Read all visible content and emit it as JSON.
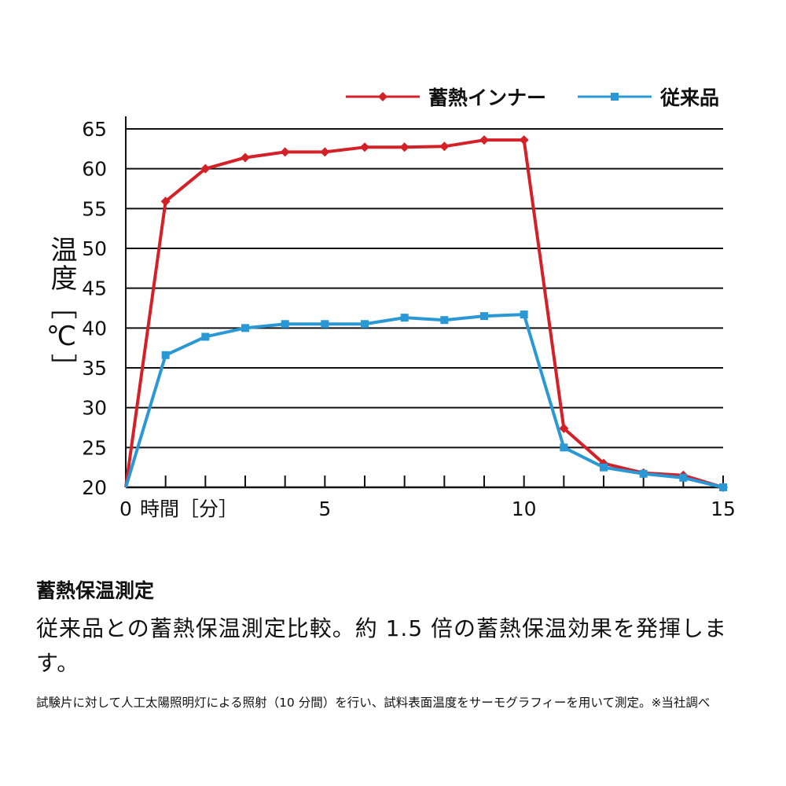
{
  "chart_data": {
    "type": "line",
    "xlabel": "時間［分］",
    "ylabel": "温度［℃］",
    "x": [
      0,
      1,
      2,
      3,
      4,
      5,
      6,
      7,
      8,
      9,
      10,
      11,
      12,
      13,
      14,
      15
    ],
    "xlim": [
      0,
      15
    ],
    "ylim": [
      20,
      65
    ],
    "x_tick_labels": [
      "0",
      "5",
      "10",
      "15"
    ],
    "x_tick_values": [
      0,
      5,
      10,
      15
    ],
    "y_ticks": [
      20,
      25,
      30,
      35,
      40,
      45,
      50,
      55,
      60,
      65
    ],
    "grid": "horizontal",
    "legend_position": "top-right",
    "series": [
      {
        "name": "蓄熱インナー",
        "color": "#d42027",
        "marker": "diamond",
        "values": [
          20,
          55.9,
          60,
          61.4,
          62.1,
          62.1,
          62.7,
          62.7,
          62.8,
          63.6,
          63.6,
          27.4,
          23,
          21.8,
          21.5,
          20
        ]
      },
      {
        "name": "従来品",
        "color": "#2a98d4",
        "marker": "square",
        "values": [
          20,
          36.6,
          38.9,
          40,
          40.5,
          40.5,
          40.5,
          41.3,
          41,
          41.5,
          41.7,
          25,
          22.5,
          21.7,
          21.2,
          20
        ]
      }
    ]
  },
  "text": {
    "title": "蓄熱保温測定",
    "description": "従来品との蓄熱保温測定比較。約 1.5 倍の蓄熱保温効果を発揮します。",
    "note": "試験片に対して人工太陽照明灯による照射（10 分間）を行い、試料表面温度をサーモグラフィーを用いて測定。※当社調べ"
  }
}
